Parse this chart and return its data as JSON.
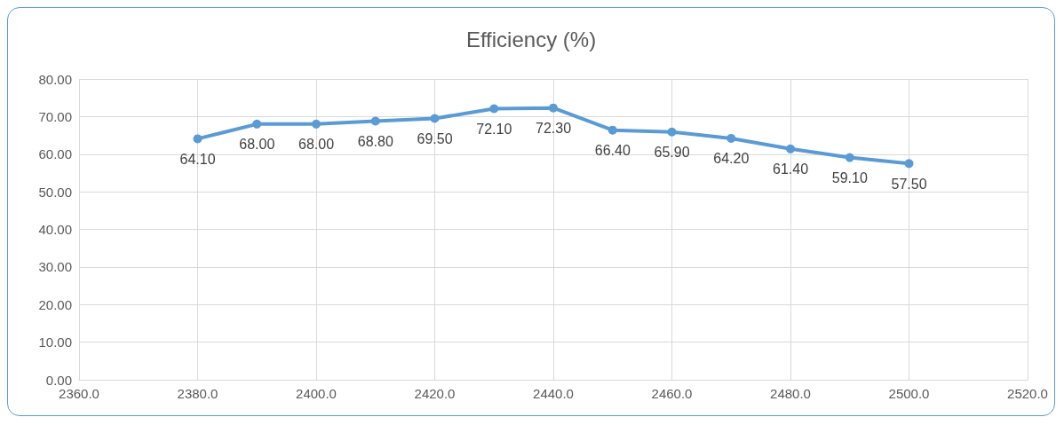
{
  "chart_data": {
    "type": "line",
    "title": "Efficiency (%)",
    "x": [
      2380,
      2390,
      2400,
      2410,
      2420,
      2430,
      2440,
      2450,
      2460,
      2470,
      2480,
      2490,
      2500
    ],
    "series": [
      {
        "color": "#5b9bd5",
        "values": [
          64.1,
          68.0,
          68.0,
          68.8,
          69.5,
          72.1,
          72.3,
          66.4,
          65.9,
          64.2,
          61.4,
          59.1,
          57.5
        ],
        "value_labels": [
          "64.10",
          "68.00",
          "68.00",
          "68.80",
          "69.50",
          "72.10",
          "72.30",
          "66.40",
          "65.90",
          "64.20",
          "61.40",
          "59.10",
          "57.50"
        ]
      }
    ],
    "xlim": [
      2360,
      2520
    ],
    "xticks": [
      {
        "value": 2360,
        "label": "2360.0"
      },
      {
        "value": 2380,
        "label": "2380.0"
      },
      {
        "value": 2400,
        "label": "2400.0"
      },
      {
        "value": 2420,
        "label": "2420.0"
      },
      {
        "value": 2440,
        "label": "2440.0"
      },
      {
        "value": 2460,
        "label": "2460.0"
      },
      {
        "value": 2480,
        "label": "2480.0"
      },
      {
        "value": 2500,
        "label": "2500.0"
      },
      {
        "value": 2520,
        "label": "2520.0"
      }
    ],
    "ylim": [
      0,
      80
    ],
    "yticks": [
      {
        "value": 0,
        "label": "0.00"
      },
      {
        "value": 10,
        "label": "10.00"
      },
      {
        "value": 20,
        "label": "20.00"
      },
      {
        "value": 30,
        "label": "30.00"
      },
      {
        "value": 40,
        "label": "40.00"
      },
      {
        "value": 50,
        "label": "50.00"
      },
      {
        "value": 60,
        "label": "60.00"
      },
      {
        "value": 70,
        "label": "70.00"
      },
      {
        "value": 80,
        "label": "80.00"
      }
    ],
    "grid": true,
    "marker": "circle",
    "line_style": "solid"
  }
}
